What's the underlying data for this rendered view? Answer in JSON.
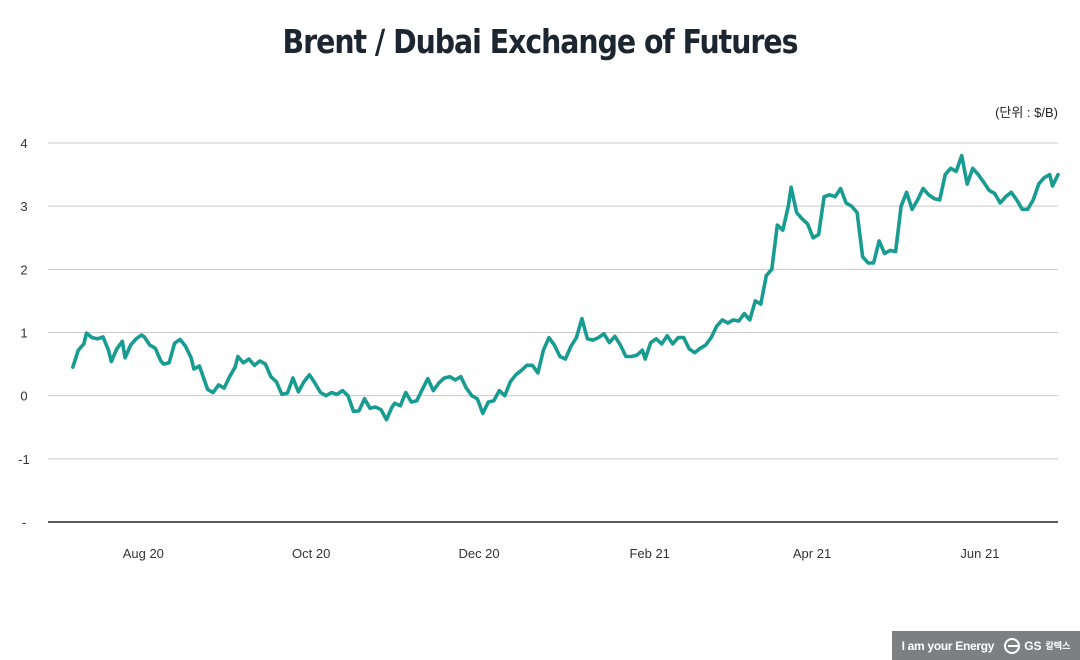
{
  "chart_data": {
    "type": "line",
    "title": "Brent / Dubai Exchange of Futures",
    "unit": "(단위 : $/B)",
    "xlabel": "",
    "ylabel": "",
    "ylim": [
      -2,
      4
    ],
    "yticks": [
      {
        "value": 4,
        "label": "4"
      },
      {
        "value": 3,
        "label": "3"
      },
      {
        "value": 2,
        "label": "2"
      },
      {
        "value": 1,
        "label": "1"
      },
      {
        "value": 0,
        "label": "0"
      },
      {
        "value": -1,
        "label": "-1"
      },
      {
        "value": -2,
        "label": "-"
      }
    ],
    "xlim": [
      "2020-07-01",
      "2021-07-03"
    ],
    "xticks": [
      {
        "date": "2020-08-01",
        "label": "Aug 20"
      },
      {
        "date": "2020-10-01",
        "label": "Oct 20"
      },
      {
        "date": "2020-12-01",
        "label": "Dec 20"
      },
      {
        "date": "2021-02-01",
        "label": "Feb 21"
      },
      {
        "date": "2021-04-01",
        "label": "Apr 21"
      },
      {
        "date": "2021-06-01",
        "label": "Jun 21"
      }
    ],
    "grid": true,
    "legend": "none",
    "color": "#189c92",
    "series": [
      {
        "name": "Brent / Dubai EFS",
        "points": [
          [
            "2020-07-10",
            0.45
          ],
          [
            "2020-07-12",
            0.72
          ],
          [
            "2020-07-14",
            0.82
          ],
          [
            "2020-07-15",
            0.99
          ],
          [
            "2020-07-17",
            0.92
          ],
          [
            "2020-07-19",
            0.9
          ],
          [
            "2020-07-21",
            0.93
          ],
          [
            "2020-07-23",
            0.72
          ],
          [
            "2020-07-24",
            0.54
          ],
          [
            "2020-07-26",
            0.74
          ],
          [
            "2020-07-28",
            0.86
          ],
          [
            "2020-07-29",
            0.6
          ],
          [
            "2020-07-31",
            0.8
          ],
          [
            "2020-08-02",
            0.9
          ],
          [
            "2020-08-04",
            0.96
          ],
          [
            "2020-08-05",
            0.93
          ],
          [
            "2020-08-07",
            0.8
          ],
          [
            "2020-08-09",
            0.75
          ],
          [
            "2020-08-11",
            0.55
          ],
          [
            "2020-08-12",
            0.5
          ],
          [
            "2020-08-14",
            0.52
          ],
          [
            "2020-08-16",
            0.83
          ],
          [
            "2020-08-18",
            0.89
          ],
          [
            "2020-08-20",
            0.78
          ],
          [
            "2020-08-22",
            0.6
          ],
          [
            "2020-08-23",
            0.42
          ],
          [
            "2020-08-25",
            0.47
          ],
          [
            "2020-08-26",
            0.35
          ],
          [
            "2020-08-28",
            0.1
          ],
          [
            "2020-08-30",
            0.05
          ],
          [
            "2020-09-01",
            0.17
          ],
          [
            "2020-09-03",
            0.12
          ],
          [
            "2020-09-05",
            0.3
          ],
          [
            "2020-09-07",
            0.45
          ],
          [
            "2020-09-08",
            0.62
          ],
          [
            "2020-09-10",
            0.52
          ],
          [
            "2020-09-12",
            0.58
          ],
          [
            "2020-09-14",
            0.48
          ],
          [
            "2020-09-16",
            0.55
          ],
          [
            "2020-09-18",
            0.5
          ],
          [
            "2020-09-20",
            0.3
          ],
          [
            "2020-09-22",
            0.22
          ],
          [
            "2020-09-24",
            0.02
          ],
          [
            "2020-09-26",
            0.04
          ],
          [
            "2020-09-28",
            0.28
          ],
          [
            "2020-09-30",
            0.06
          ],
          [
            "2020-10-02",
            0.22
          ],
          [
            "2020-10-04",
            0.33
          ],
          [
            "2020-10-06",
            0.2
          ],
          [
            "2020-10-08",
            0.05
          ],
          [
            "2020-10-10",
            0.0
          ],
          [
            "2020-10-12",
            0.05
          ],
          [
            "2020-10-14",
            0.02
          ],
          [
            "2020-10-16",
            0.08
          ],
          [
            "2020-10-18",
            0.0
          ],
          [
            "2020-10-20",
            -0.25
          ],
          [
            "2020-10-22",
            -0.24
          ],
          [
            "2020-10-24",
            -0.05
          ],
          [
            "2020-10-26",
            -0.2
          ],
          [
            "2020-10-28",
            -0.18
          ],
          [
            "2020-10-30",
            -0.22
          ],
          [
            "2020-11-01",
            -0.38
          ],
          [
            "2020-11-03",
            -0.18
          ],
          [
            "2020-11-04",
            -0.12
          ],
          [
            "2020-11-06",
            -0.16
          ],
          [
            "2020-11-08",
            0.05
          ],
          [
            "2020-11-10",
            -0.1
          ],
          [
            "2020-11-12",
            -0.08
          ],
          [
            "2020-11-14",
            0.1
          ],
          [
            "2020-11-16",
            0.27
          ],
          [
            "2020-11-18",
            0.08
          ],
          [
            "2020-11-20",
            0.2
          ],
          [
            "2020-11-22",
            0.28
          ],
          [
            "2020-11-24",
            0.3
          ],
          [
            "2020-11-26",
            0.25
          ],
          [
            "2020-11-28",
            0.3
          ],
          [
            "2020-11-30",
            0.12
          ],
          [
            "2020-12-02",
            0.0
          ],
          [
            "2020-12-04",
            -0.05
          ],
          [
            "2020-12-06",
            -0.28
          ],
          [
            "2020-12-08",
            -0.1
          ],
          [
            "2020-12-10",
            -0.08
          ],
          [
            "2020-12-12",
            0.08
          ],
          [
            "2020-12-14",
            0.0
          ],
          [
            "2020-12-16",
            0.22
          ],
          [
            "2020-12-18",
            0.33
          ],
          [
            "2020-12-20",
            0.4
          ],
          [
            "2020-12-22",
            0.48
          ],
          [
            "2020-12-24",
            0.48
          ],
          [
            "2020-12-26",
            0.36
          ],
          [
            "2020-12-28",
            0.72
          ],
          [
            "2020-12-30",
            0.92
          ],
          [
            "2021-01-01",
            0.8
          ],
          [
            "2021-01-03",
            0.62
          ],
          [
            "2021-01-05",
            0.58
          ],
          [
            "2021-01-07",
            0.78
          ],
          [
            "2021-01-09",
            0.92
          ],
          [
            "2021-01-11",
            1.22
          ],
          [
            "2021-01-13",
            0.9
          ],
          [
            "2021-01-15",
            0.88
          ],
          [
            "2021-01-17",
            0.92
          ],
          [
            "2021-01-19",
            0.98
          ],
          [
            "2021-01-21",
            0.84
          ],
          [
            "2021-01-23",
            0.94
          ],
          [
            "2021-01-25",
            0.8
          ],
          [
            "2021-01-27",
            0.62
          ],
          [
            "2021-01-29",
            0.62
          ],
          [
            "2021-01-31",
            0.64
          ],
          [
            "2021-02-02",
            0.72
          ],
          [
            "2021-02-03",
            0.58
          ],
          [
            "2021-02-05",
            0.84
          ],
          [
            "2021-02-07",
            0.9
          ],
          [
            "2021-02-09",
            0.82
          ],
          [
            "2021-02-11",
            0.95
          ],
          [
            "2021-02-13",
            0.82
          ],
          [
            "2021-02-15",
            0.92
          ],
          [
            "2021-02-17",
            0.92
          ],
          [
            "2021-02-19",
            0.74
          ],
          [
            "2021-02-21",
            0.68
          ],
          [
            "2021-02-23",
            0.75
          ],
          [
            "2021-02-25",
            0.8
          ],
          [
            "2021-02-27",
            0.92
          ],
          [
            "2021-03-01",
            1.1
          ],
          [
            "2021-03-03",
            1.2
          ],
          [
            "2021-03-05",
            1.15
          ],
          [
            "2021-03-07",
            1.2
          ],
          [
            "2021-03-09",
            1.18
          ],
          [
            "2021-03-11",
            1.3
          ],
          [
            "2021-03-13",
            1.2
          ],
          [
            "2021-03-15",
            1.5
          ],
          [
            "2021-03-17",
            1.45
          ],
          [
            "2021-03-19",
            1.9
          ],
          [
            "2021-03-21",
            2.0
          ],
          [
            "2021-03-23",
            2.7
          ],
          [
            "2021-03-25",
            2.62
          ],
          [
            "2021-03-27",
            3.0
          ],
          [
            "2021-03-28",
            3.3
          ],
          [
            "2021-03-30",
            2.9
          ],
          [
            "2021-04-01",
            2.8
          ],
          [
            "2021-04-03",
            2.72
          ],
          [
            "2021-04-05",
            2.5
          ],
          [
            "2021-04-07",
            2.55
          ],
          [
            "2021-04-09",
            3.15
          ],
          [
            "2021-04-11",
            3.18
          ],
          [
            "2021-04-13",
            3.15
          ],
          [
            "2021-04-15",
            3.28
          ],
          [
            "2021-04-17",
            3.05
          ],
          [
            "2021-04-19",
            3.0
          ],
          [
            "2021-04-21",
            2.9
          ],
          [
            "2021-04-23",
            2.2
          ],
          [
            "2021-04-25",
            2.1
          ],
          [
            "2021-04-27",
            2.1
          ],
          [
            "2021-04-29",
            2.45
          ],
          [
            "2021-05-01",
            2.25
          ],
          [
            "2021-05-03",
            2.3
          ],
          [
            "2021-05-05",
            2.28
          ],
          [
            "2021-05-07",
            3.0
          ],
          [
            "2021-05-09",
            3.22
          ],
          [
            "2021-05-11",
            2.95
          ],
          [
            "2021-05-13",
            3.1
          ],
          [
            "2021-05-15",
            3.28
          ],
          [
            "2021-05-17",
            3.18
          ],
          [
            "2021-05-19",
            3.12
          ],
          [
            "2021-05-21",
            3.1
          ],
          [
            "2021-05-23",
            3.5
          ],
          [
            "2021-05-25",
            3.6
          ],
          [
            "2021-05-27",
            3.55
          ],
          [
            "2021-05-29",
            3.8
          ],
          [
            "2021-05-31",
            3.35
          ],
          [
            "2021-06-02",
            3.6
          ],
          [
            "2021-06-04",
            3.5
          ],
          [
            "2021-06-06",
            3.38
          ],
          [
            "2021-06-08",
            3.25
          ],
          [
            "2021-06-10",
            3.2
          ],
          [
            "2021-06-12",
            3.05
          ],
          [
            "2021-06-14",
            3.15
          ],
          [
            "2021-06-16",
            3.22
          ],
          [
            "2021-06-18",
            3.1
          ],
          [
            "2021-06-20",
            2.95
          ],
          [
            "2021-06-22",
            2.95
          ],
          [
            "2021-06-24",
            3.1
          ],
          [
            "2021-06-26",
            3.35
          ],
          [
            "2021-06-28",
            3.45
          ],
          [
            "2021-06-30",
            3.5
          ],
          [
            "2021-07-01",
            3.32
          ],
          [
            "2021-07-03",
            3.5
          ]
        ]
      }
    ]
  },
  "footer": {
    "tagline": "I am your Energy",
    "brand": "GS",
    "brand_sub": "칼텍스"
  }
}
